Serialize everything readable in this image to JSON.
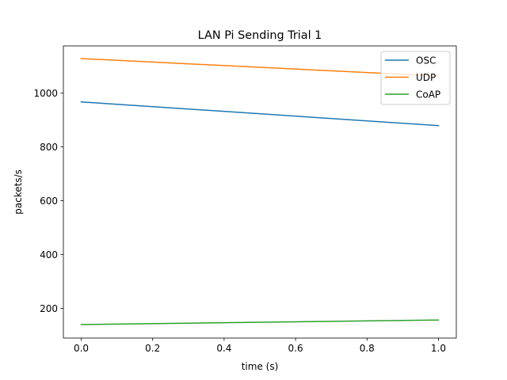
{
  "chart_data": {
    "type": "line",
    "title": "LAN Pi Sending Trial 1",
    "xlabel": "time (s)",
    "ylabel": "packets/s",
    "x": [
      0.0,
      1.0
    ],
    "xlim": [
      -0.05,
      1.05
    ],
    "ylim": [
      90,
      1175
    ],
    "xticks": [
      0.0,
      0.2,
      0.4,
      0.6,
      0.8,
      1.0
    ],
    "xtick_labels": [
      "0.0",
      "0.2",
      "0.4",
      "0.6",
      "0.8",
      "1.0"
    ],
    "yticks": [
      200,
      400,
      600,
      800,
      1000
    ],
    "ytick_labels": [
      "200",
      "400",
      "600",
      "800",
      "1000"
    ],
    "grid": false,
    "legend_position": "top-right",
    "series": [
      {
        "name": "OSC",
        "values": [
          967,
          879
        ],
        "color": "#1f77b4"
      },
      {
        "name": "UDP",
        "values": [
          1128,
          1063
        ],
        "color": "#ff7f0e"
      },
      {
        "name": "CoAP",
        "values": [
          140,
          157
        ],
        "color": "#2ca02c"
      }
    ]
  }
}
